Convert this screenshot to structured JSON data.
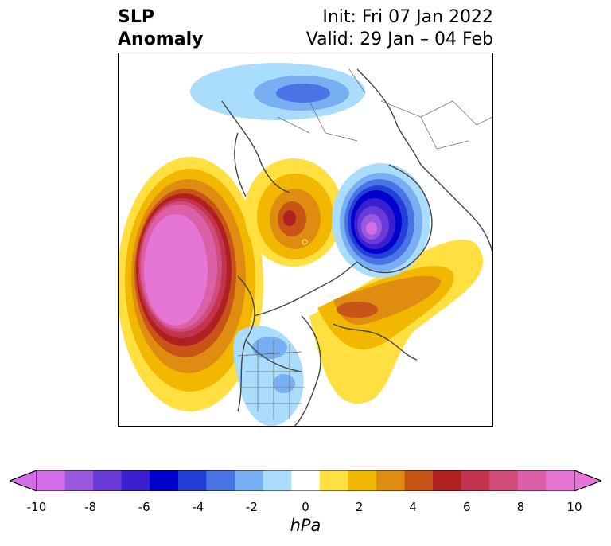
{
  "title": {
    "left_line1": "SLP",
    "left_line2": "Anomaly",
    "init": "Init: Fri 07 Jan 2022",
    "valid": "Valid: 29 Jan – 04 Feb"
  },
  "colorbar": {
    "unit": "hPa",
    "min": -10,
    "max": 10,
    "ticks": [
      "-10",
      "-8",
      "-6",
      "-4",
      "-2",
      "0",
      "2",
      "4",
      "6",
      "8",
      "10"
    ],
    "colors": [
      "#d36ee8",
      "#9b59e0",
      "#6a3ad9",
      "#3a1fd0",
      "#0000cc",
      "#2240d8",
      "#4a74e6",
      "#78aef2",
      "#aadcfc",
      "#ffffff",
      "#ffe040",
      "#f2b800",
      "#e08c10",
      "#c85418",
      "#b02020",
      "#c43450",
      "#d04c7a",
      "#dc60a8",
      "#e676d6"
    ]
  },
  "map": {
    "projection": "north-polar-stereographic",
    "features": [
      "coastlines",
      "country-borders",
      "us-state-borders"
    ]
  }
}
